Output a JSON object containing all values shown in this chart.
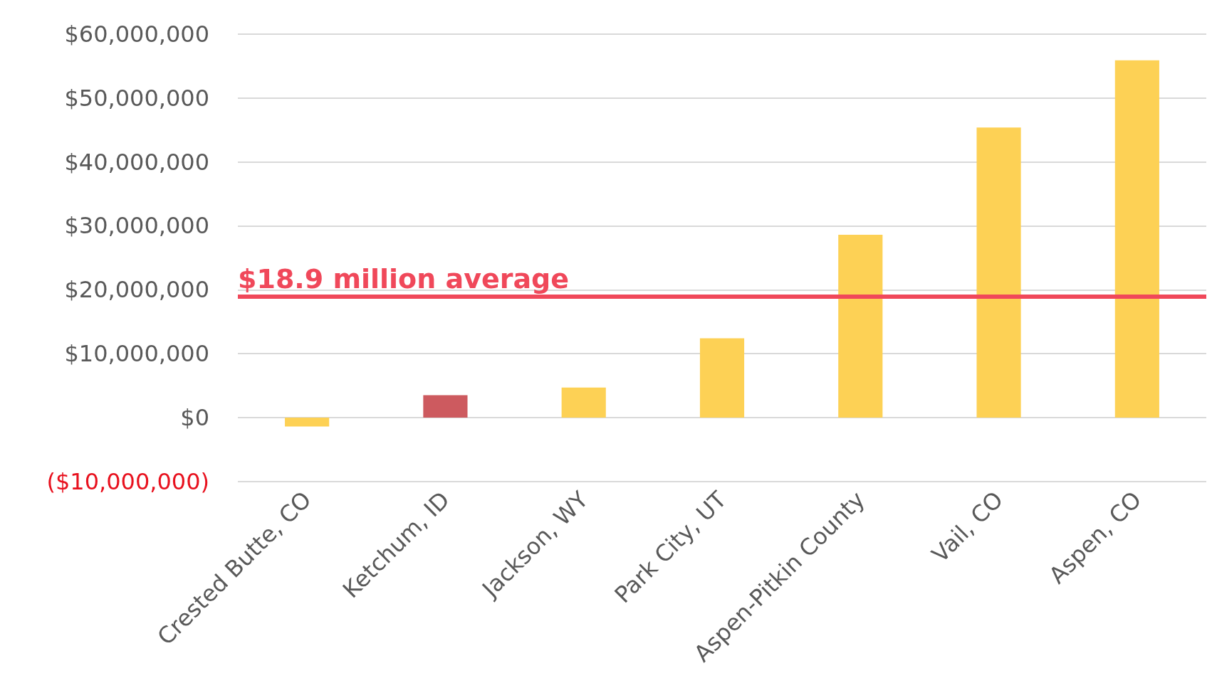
{
  "chart_data": {
    "type": "bar",
    "categories": [
      "Crested Butte, CO",
      "Ketchum, ID",
      "Jackson, WY",
      "Park City, UT",
      "Aspen-Pitkin County",
      "Vail, CO",
      "Aspen, CO"
    ],
    "values": [
      -1400000,
      3500000,
      4700000,
      12400000,
      28600000,
      45400000,
      55900000
    ],
    "colors": [
      "#fdd155",
      "#cd5a5f",
      "#fdd155",
      "#fdd155",
      "#fdd155",
      "#fdd155",
      "#fdd155"
    ],
    "ylim": [
      -10000000,
      60000000
    ],
    "yticks": [
      {
        "value": -10000000,
        "label": "($10,000,000)"
      },
      {
        "value": 0,
        "label": "$0"
      },
      {
        "value": 10000000,
        "label": "$10,000,000"
      },
      {
        "value": 20000000,
        "label": "$20,000,000"
      },
      {
        "value": 30000000,
        "label": "$30,000,000"
      },
      {
        "value": 40000000,
        "label": "$40,000,000"
      },
      {
        "value": 50000000,
        "label": "$50,000,000"
      },
      {
        "value": 60000000,
        "label": "$60,000,000"
      }
    ],
    "ref_lines": [
      {
        "axis": "y",
        "value": 18900000,
        "label": "$18.9 million average",
        "color": "#f0485a"
      }
    ],
    "grid": "y"
  }
}
